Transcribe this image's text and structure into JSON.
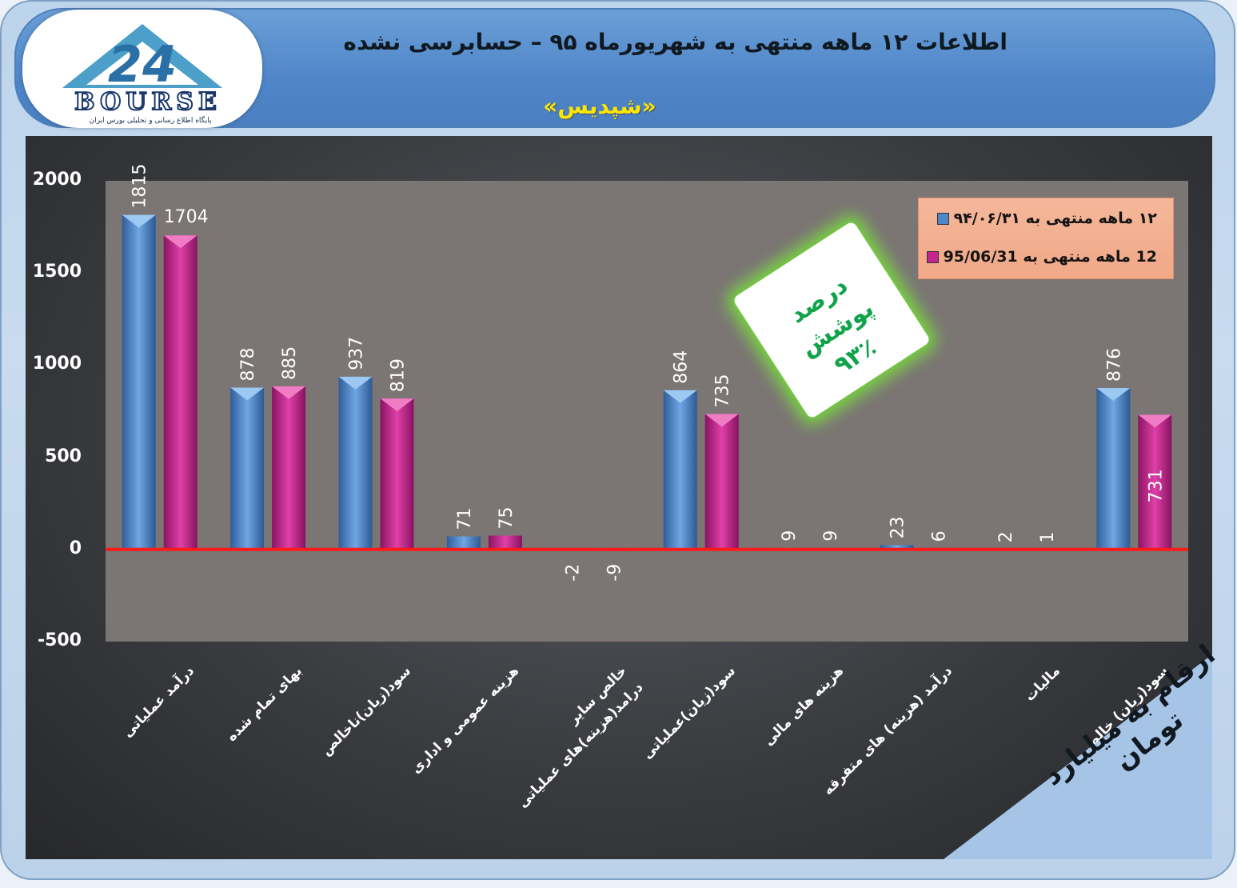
{
  "header": {
    "title": "اطلاعات ۱۲  ماهه منتهی به شهریورماه ۹۵ – حسابرسی نشده",
    "subtitle": "«شپدیس»"
  },
  "logo": {
    "name": "BOURSE",
    "caption": "پایگاه اطلاع رسانی و تحلیلی بورس ایران"
  },
  "badge": {
    "line1": "درصد پوشش",
    "line2": "۹۳٪"
  },
  "corner_note": "ارقام به میلیارد تومان",
  "colors": {
    "series1": "#4f86c8",
    "series2": "#c2268f",
    "zero_line": "#ff1a1a"
  },
  "chart_data": {
    "type": "bar",
    "categories": [
      "درآمد عملیاتی",
      "بهای تمام شده",
      "سود(زیان)ناخالص",
      "هزینه عمومی و اداری",
      "خالص سایر درامد(هزینه)های عملیاتی",
      "سود(زیان)عملیاتی",
      "هزینه های مالی",
      "درآمد (هزینه) های متفرقه",
      "مالیات",
      "سود(زیان) خالص"
    ],
    "series": [
      {
        "name": "۱۲ ماهه منتهی به ۹۴/۰۶/۳۱",
        "values": [
          1815,
          878,
          937,
          71,
          -2,
          864,
          9,
          23,
          2,
          876
        ],
        "labels": [
          "1815",
          "878",
          "937",
          "71",
          "-2",
          "864",
          "9",
          "23",
          "2",
          "876"
        ]
      },
      {
        "name": "12 ماهه منتهی به 95/06/31",
        "values": [
          1704,
          885,
          819,
          75,
          -9,
          735,
          9,
          6,
          1,
          731
        ],
        "labels": [
          "1704",
          "885",
          "819",
          "75",
          "-9",
          "735",
          "9",
          "6",
          "1",
          "731"
        ]
      }
    ],
    "ylim": [
      -500,
      2000
    ],
    "yticks": [
      2000,
      1500,
      1000,
      500,
      0,
      -500
    ],
    "ytick_labels": [
      "2000",
      "1500",
      "1000",
      "500",
      "0",
      "-500"
    ],
    "legend_position": "top-right"
  }
}
